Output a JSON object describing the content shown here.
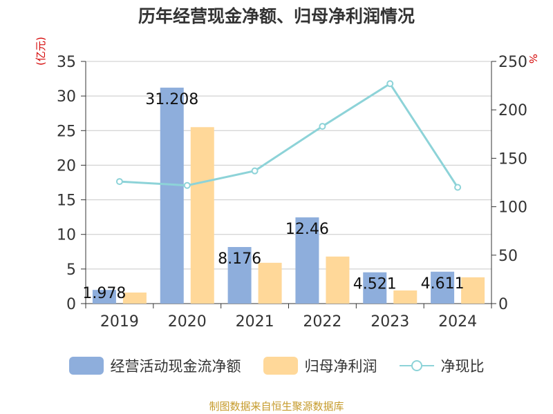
{
  "title": "历年经营现金净额、归母净利润情况",
  "left_unit": "(亿元)",
  "right_unit": "%",
  "source": "制图数据来自恒生聚源数据库",
  "colors": {
    "cash": "#8eaedc",
    "profit": "#ffd899",
    "ratio": "#8dd3d8",
    "unit": "#d40000",
    "source": "#c59a2a"
  },
  "legend": {
    "cash": "经营活动现金流净额",
    "profit": "归母净利润",
    "ratio": "净现比"
  },
  "chart_data": {
    "type": "bar",
    "categories": [
      "2019",
      "2020",
      "2021",
      "2022",
      "2023",
      "2024"
    ],
    "series": [
      {
        "name": "经营活动现金流净额",
        "values": [
          1.978,
          31.208,
          8.176,
          12.46,
          4.521,
          4.611
        ],
        "labels": [
          "1.978",
          "31.208",
          "8.176",
          "12.46",
          "4.521",
          "4.611"
        ]
      },
      {
        "name": "归母净利润",
        "values": [
          1.6,
          25.5,
          5.9,
          6.8,
          1.9,
          3.8
        ]
      },
      {
        "name": "净现比",
        "type": "line",
        "axis": "right",
        "values": [
          126,
          122,
          137,
          183,
          227,
          120
        ]
      }
    ],
    "y_left": {
      "ylim": [
        0,
        35
      ],
      "ticks": [
        "0",
        "5",
        "10",
        "15",
        "20",
        "25",
        "30",
        "35"
      ]
    },
    "y_right": {
      "ylim": [
        0,
        250
      ],
      "ticks": [
        "0",
        "50",
        "100",
        "150",
        "200",
        "250"
      ]
    },
    "grid": true,
    "legend_position": "bottom"
  }
}
